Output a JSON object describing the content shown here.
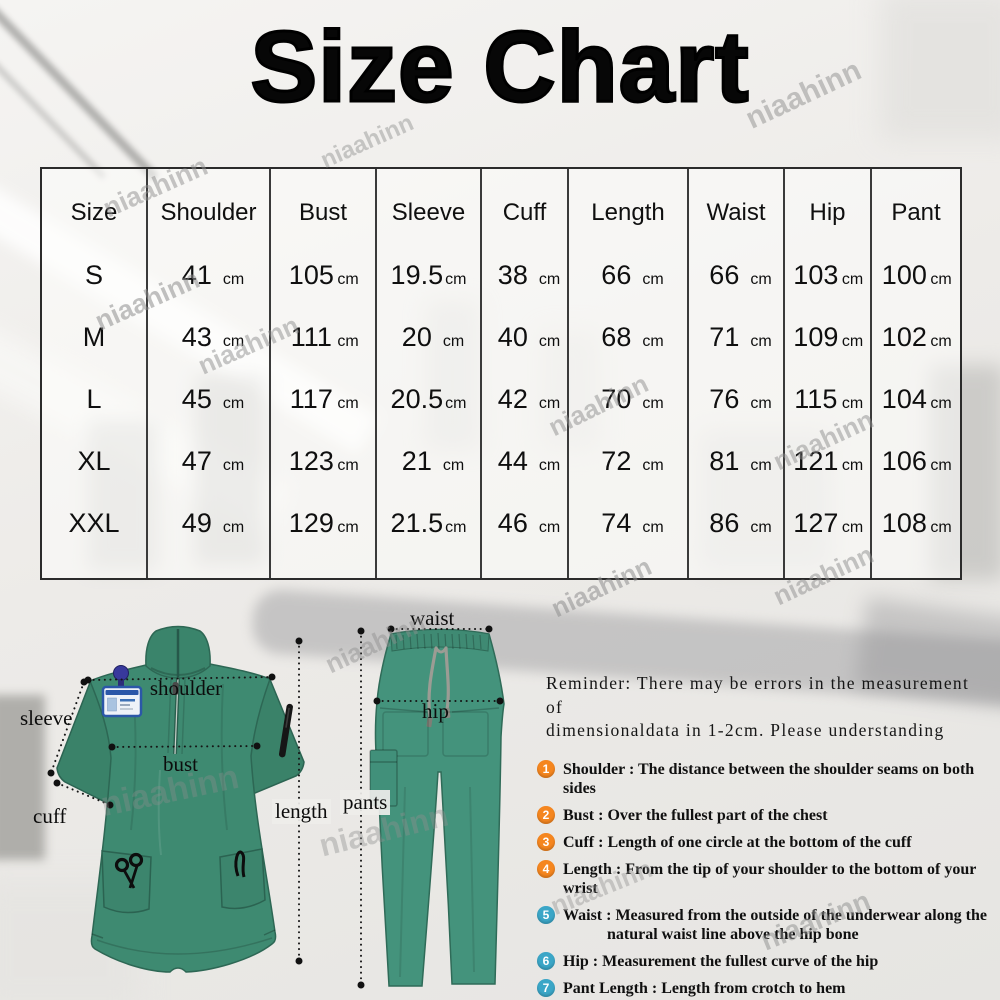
{
  "title": "Size Chart",
  "watermark": {
    "text": "niaahinn"
  },
  "size_table": {
    "unit": "cm",
    "columns": [
      "Size",
      "Shoulder",
      "Bust",
      "Sleeve",
      "Cuff",
      "Length",
      "Waist",
      "Hip",
      "Pant"
    ],
    "rows": [
      {
        "size": "S",
        "values": [
          "41",
          "105",
          "19.5",
          "38",
          "66",
          "66",
          "103",
          "100"
        ]
      },
      {
        "size": "M",
        "values": [
          "43",
          "111",
          "20",
          "40",
          "68",
          "71",
          "109",
          "102"
        ]
      },
      {
        "size": "L",
        "values": [
          "45",
          "117",
          "20.5",
          "42",
          "70",
          "76",
          "115",
          "104"
        ]
      },
      {
        "size": "XL",
        "values": [
          "47",
          "123",
          "21",
          "44",
          "72",
          "81",
          "121",
          "106"
        ]
      },
      {
        "size": "XXL",
        "values": [
          "49",
          "129",
          "21.5",
          "46",
          "74",
          "86",
          "127",
          "108"
        ]
      }
    ]
  },
  "diagram": {
    "top_color": "#3E8A71",
    "pants_color": "#44937C",
    "labels": {
      "shoulder": "shoulder",
      "sleeve": "sleeve",
      "bust": "bust",
      "cuff": "cuff",
      "length": "length",
      "waist": "waist",
      "hip": "hip",
      "pants": "pants"
    }
  },
  "reminder": {
    "line1": "Reminder: There may be errors in the measurement of",
    "line2": "dimensionaldata in 1-2cm. Please understanding"
  },
  "notes": {
    "number_colors": {
      "items_1_to_4": "#F5861F",
      "items_5_to_7": "#3BA6C7"
    },
    "items": [
      {
        "num": "1",
        "color": "orange",
        "text": "Shoulder : The distance between the shoulder seams on both sides"
      },
      {
        "num": "2",
        "color": "orange",
        "text": "Bust : Over the fullest part of the chest"
      },
      {
        "num": "3",
        "color": "orange",
        "text": "Cuff : Length of one circle at the bottom of the cuff"
      },
      {
        "num": "4",
        "color": "orange",
        "text": "Length : From the tip of your shoulder to the bottom of your wrist"
      },
      {
        "num": "5",
        "color": "teal",
        "text": "Waist : Measured from the outside of the underwear along the",
        "text2": "natural waist line above the hip bone"
      },
      {
        "num": "6",
        "color": "teal",
        "text": "Hip : Measurement the fullest curve of the hip"
      },
      {
        "num": "7",
        "color": "teal",
        "text": "Pant Length : Length from crotch to hem"
      }
    ]
  }
}
